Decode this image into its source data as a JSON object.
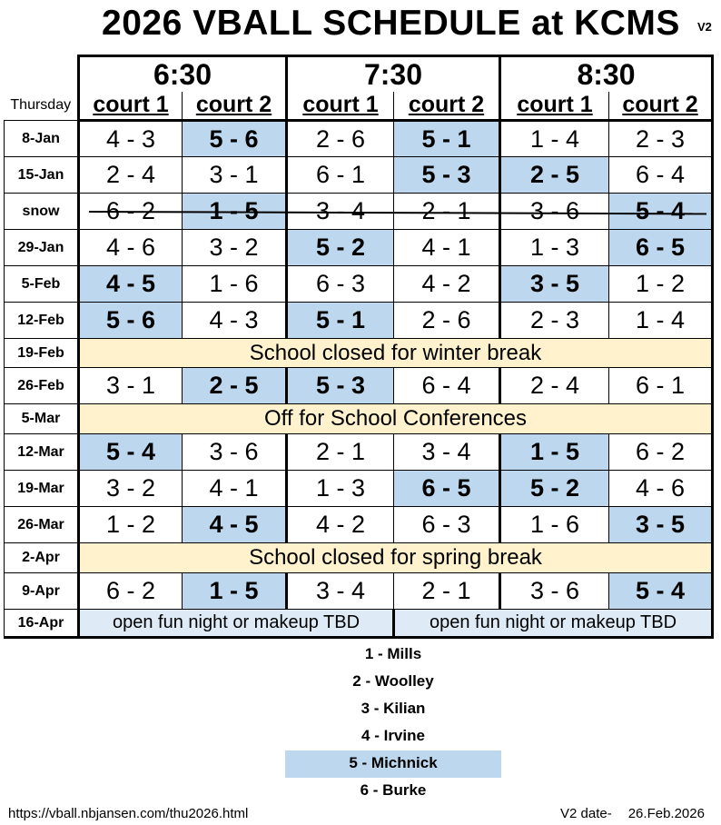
{
  "title": "2026 VBALL SCHEDULE at KCMS",
  "version": "V2",
  "header": {
    "thursday": "Thursday",
    "times": [
      "6:30",
      "7:30",
      "8:30"
    ],
    "court1": "court 1",
    "court2": "court 2"
  },
  "rows": [
    {
      "date": "8-Jan",
      "games": [
        "4 - 3",
        "5 - 6",
        "2 - 6",
        "5 - 1",
        "1 - 4",
        "2 - 3"
      ],
      "michnick": [
        false,
        true,
        false,
        true,
        false,
        false
      ]
    },
    {
      "date": "15-Jan",
      "games": [
        "2 - 4",
        "3 - 1",
        "6 - 1",
        "5 - 3",
        "2 - 5",
        "6 - 4"
      ],
      "michnick": [
        false,
        false,
        false,
        true,
        true,
        false
      ]
    },
    {
      "date": "snow",
      "games": [
        "6 - 2",
        "1 - 5",
        "3 - 4",
        "2 - 1",
        "3 - 6",
        "5 - 4"
      ],
      "michnick": [
        false,
        false,
        false,
        false,
        false,
        false
      ],
      "highlighted": [
        false,
        true,
        false,
        false,
        false,
        true
      ],
      "cancelled": true
    },
    {
      "date": "29-Jan",
      "games": [
        "4 - 6",
        "3 - 2",
        "5 - 2",
        "4 - 1",
        "1 - 3",
        "6 - 5"
      ],
      "michnick": [
        false,
        false,
        true,
        false,
        false,
        true
      ]
    },
    {
      "date": "5-Feb",
      "games": [
        "4 - 5",
        "1 - 6",
        "6 - 3",
        "4 - 2",
        "3 - 5",
        "1 - 2"
      ],
      "michnick": [
        true,
        false,
        false,
        false,
        true,
        false
      ]
    },
    {
      "date": "12-Feb",
      "games": [
        "5 - 6",
        "4 - 3",
        "5 - 1",
        "2 - 6",
        "2 - 3",
        "1 - 4"
      ],
      "michnick": [
        true,
        false,
        true,
        false,
        false,
        false
      ]
    },
    {
      "date": "19-Feb",
      "note": "School closed for winter break"
    },
    {
      "date": "26-Feb",
      "games": [
        "3 - 1",
        "2 - 5",
        "5 - 3",
        "6 - 4",
        "2 - 4",
        "6 - 1"
      ],
      "michnick": [
        false,
        true,
        true,
        false,
        false,
        false
      ]
    },
    {
      "date": "5-Mar",
      "note": "Off for School Conferences"
    },
    {
      "date": "12-Mar",
      "games": [
        "5 - 4",
        "3 - 6",
        "2 - 1",
        "3 - 4",
        "1 - 5",
        "6 - 2"
      ],
      "michnick": [
        true,
        false,
        false,
        false,
        true,
        false
      ]
    },
    {
      "date": "19-Mar",
      "games": [
        "3 - 2",
        "4 - 1",
        "1 - 3",
        "6 - 5",
        "5 - 2",
        "4 - 6"
      ],
      "michnick": [
        false,
        false,
        false,
        true,
        true,
        false
      ]
    },
    {
      "date": "26-Mar",
      "games": [
        "1 - 2",
        "4 - 5",
        "4 - 2",
        "6 - 3",
        "1 - 6",
        "3 - 5"
      ],
      "michnick": [
        false,
        true,
        false,
        false,
        false,
        true
      ]
    },
    {
      "date": "2-Apr",
      "note": "School closed for spring break"
    },
    {
      "date": "9-Apr",
      "games": [
        "6 - 2",
        "1 - 5",
        "3 - 4",
        "2 - 1",
        "3 - 6",
        "5 - 4"
      ],
      "michnick": [
        false,
        true,
        false,
        false,
        false,
        true
      ]
    },
    {
      "date": "16-Apr",
      "open": [
        "open fun night or makeup TBD",
        "open fun night or makeup TBD"
      ]
    }
  ],
  "legend": [
    {
      "label": "1 - Mills",
      "highlight": false
    },
    {
      "label": "2 - Woolley",
      "highlight": false
    },
    {
      "label": "3 - Kilian",
      "highlight": false
    },
    {
      "label": "4 - Irvine",
      "highlight": false
    },
    {
      "label": "5 - Michnick",
      "highlight": true
    },
    {
      "label": "6 - Burke",
      "highlight": false
    }
  ],
  "footer": {
    "url": "https://vball.nbjansen.com/thu2026.html",
    "date_label": "V2 date-",
    "date_value": "26.Feb.2026"
  },
  "colors": {
    "highlight": "#bdd7ee",
    "note_bg": "#fff2cc",
    "open_bg": "#deebf7"
  }
}
